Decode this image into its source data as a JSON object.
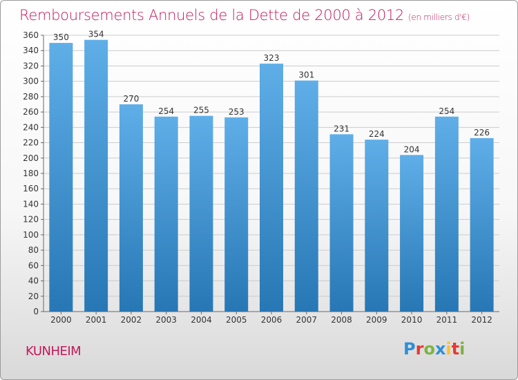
{
  "page": {
    "title": "Remboursements Annuels de la Dette de 2000 à 2012",
    "unit": "(en milliers d'€)",
    "city": "KUNHEIM",
    "logo_text": "Proxiti"
  },
  "colors": {
    "title": "#c2185b",
    "bar_top": "#5faee8",
    "bar_bottom": "#2777b5",
    "grid": "#cccccc"
  },
  "chart_data": {
    "type": "bar",
    "categories": [
      "2000",
      "2001",
      "2002",
      "2003",
      "2004",
      "2005",
      "2006",
      "2007",
      "2008",
      "2009",
      "2010",
      "2011",
      "2012"
    ],
    "values": [
      350,
      354,
      270,
      254,
      255,
      253,
      323,
      301,
      231,
      224,
      204,
      254,
      226
    ],
    "title": "Remboursements Annuels de la Dette de 2000 à 2012",
    "subtitle": "(en milliers d'€)",
    "xlabel": "",
    "ylabel": "",
    "ylim": [
      0,
      360
    ],
    "ytick_step": 20,
    "grid": true,
    "data_labels": true
  }
}
